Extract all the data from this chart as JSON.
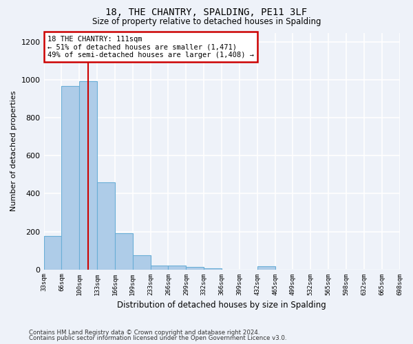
{
  "title": "18, THE CHANTRY, SPALDING, PE11 3LF",
  "subtitle": "Size of property relative to detached houses in Spalding",
  "xlabel": "Distribution of detached houses by size in Spalding",
  "ylabel": "Number of detached properties",
  "bar_values": [
    175,
    970,
    995,
    460,
    190,
    75,
    22,
    20,
    13,
    5,
    0,
    0,
    15,
    0,
    0,
    0,
    0,
    0,
    0,
    0
  ],
  "bar_labels": [
    "33sqm",
    "66sqm",
    "100sqm",
    "133sqm",
    "166sqm",
    "199sqm",
    "233sqm",
    "266sqm",
    "299sqm",
    "332sqm",
    "366sqm",
    "399sqm",
    "432sqm",
    "465sqm",
    "499sqm",
    "532sqm",
    "565sqm",
    "598sqm",
    "632sqm",
    "665sqm",
    "698sqm"
  ],
  "bar_color": "#aecce8",
  "bar_edge_color": "#6aaed6",
  "red_line_x": 2,
  "annotation_text": "18 THE CHANTRY: 111sqm\n← 51% of detached houses are smaller (1,471)\n49% of semi-detached houses are larger (1,408) →",
  "annotation_box_color": "#ffffff",
  "annotation_border_color": "#cc0000",
  "ylim": [
    0,
    1250
  ],
  "yticks": [
    0,
    200,
    400,
    600,
    800,
    1000,
    1200
  ],
  "background_color": "#eef2f9",
  "grid_color": "#ffffff",
  "footer_line1": "Contains HM Land Registry data © Crown copyright and database right 2024.",
  "footer_line2": "Contains public sector information licensed under the Open Government Licence v3.0."
}
